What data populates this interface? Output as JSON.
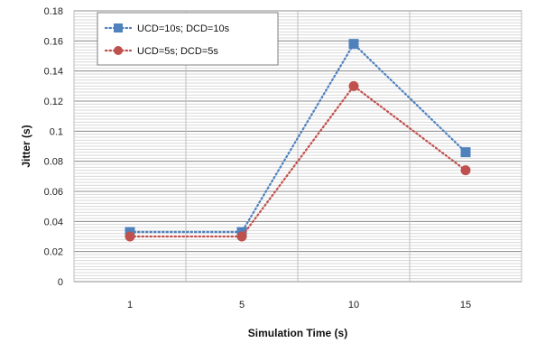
{
  "chart_data": {
    "type": "line",
    "categories": [
      "1",
      "5",
      "10",
      "15"
    ],
    "xlabel": "Simulation Time (s)",
    "ylabel": "Jitter (s)",
    "ylim": [
      0,
      0.18
    ],
    "yticks": [
      "0",
      "0.02",
      "0.04",
      "0.06",
      "0.08",
      "0.1",
      "0.12",
      "0.14",
      "0.16",
      "0.18"
    ],
    "grid": true,
    "legend": "top-left",
    "series": [
      {
        "name": "UCD=10s; DCD=10s",
        "values": [
          0.033,
          0.033,
          0.158,
          0.086
        ],
        "color": "#4f81bd",
        "marker": "square"
      },
      {
        "name": "UCD=5s; DCD=5s",
        "values": [
          0.03,
          0.03,
          0.13,
          0.074
        ],
        "color": "#c0504d",
        "marker": "circle"
      }
    ]
  }
}
